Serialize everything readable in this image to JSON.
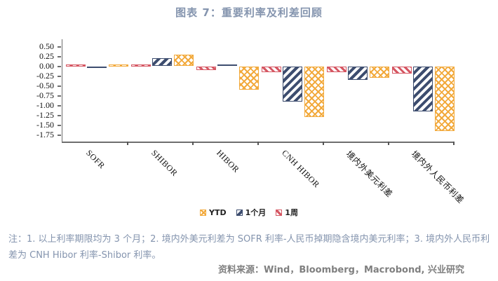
{
  "title": "图表 7：重要利率及利差回顾",
  "chart_data": {
    "type": "bar",
    "title": "图表 7：重要利率及利差回顾",
    "categories": [
      "SOFR",
      "SHIBOR",
      "HIBOR",
      "CNH HIBOR",
      "境内外美元利差",
      "境内外人民币利差"
    ],
    "series": [
      {
        "name": "1周",
        "color": "#D55662",
        "pattern": "diag-down",
        "values": [
          0.0,
          0.0,
          -0.1,
          -0.15,
          -0.15,
          -0.18
        ]
      },
      {
        "name": "1个月",
        "color": "#3D4D6F",
        "pattern": "diag-up",
        "values": [
          -0.03,
          0.2,
          0.05,
          -0.9,
          -0.35,
          -1.15
        ]
      },
      {
        "name": "YTD",
        "color": "#F2A93B",
        "pattern": "cross",
        "values": [
          0.0,
          0.3,
          -0.6,
          -1.3,
          -0.3,
          -1.65
        ]
      }
    ],
    "legend": [
      "YTD",
      "1个月",
      "1周"
    ],
    "legend_position": "bottom-center",
    "ylim": [
      -1.92,
      0.69
    ],
    "yticks": [
      0.5,
      0.25,
      0.0,
      -0.25,
      -0.5,
      -0.75,
      -1.0,
      -1.25,
      -1.5,
      -1.75
    ],
    "xlabel": "",
    "ylabel": "",
    "grid": false
  },
  "notes": "注：1. 以上利率期限均为 3 个月；2. 境内外美元利差为 SOFR 利率-人民币掉期隐含境内美元利率；3. 境内外人民币利差为 CNH Hibor 利率-Shibor 利率。",
  "source": "资料来源：Wind，Bloomberg，Macrobond, 兴业研究",
  "colors": {
    "title_text": "#8494AE",
    "notes_text": "#8494AE",
    "source_text": "#7F7F7F",
    "axis": "#6e6e6e",
    "tick_text": "#111111",
    "series_week": "#D55662",
    "series_month": "#3D4D6F",
    "series_ytd": "#F2A93B"
  }
}
